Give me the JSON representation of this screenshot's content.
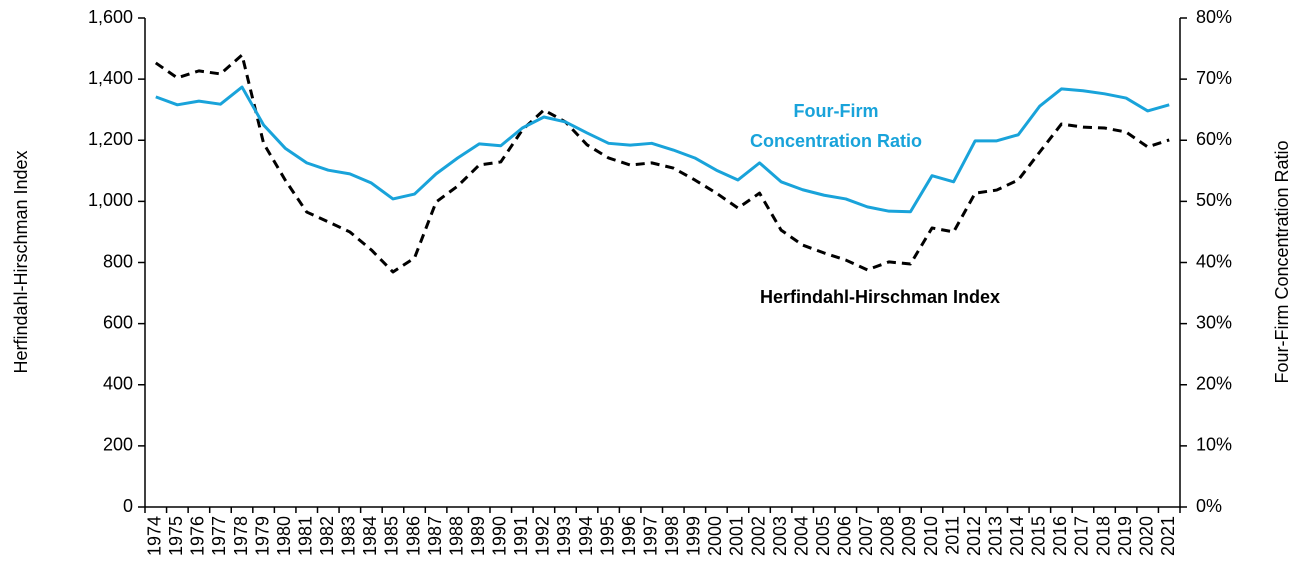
{
  "chart_data": {
    "type": "line",
    "y_label": "Herfindahl-Hirschman Index",
    "y2_label": "Four-Firm Concentration Ratio",
    "categories": [
      "1974",
      "1975",
      "1976",
      "1977",
      "1978",
      "1979",
      "1980",
      "1981",
      "1982",
      "1983",
      "1984",
      "1985",
      "1986",
      "1987",
      "1988",
      "1989",
      "1990",
      "1991",
      "1992",
      "1993",
      "1994",
      "1995",
      "1996",
      "1997",
      "1998",
      "1999",
      "2000",
      "2001",
      "2002",
      "2003",
      "2004",
      "2005",
      "2006",
      "2007",
      "2008",
      "2009",
      "2010",
      "2011",
      "2012",
      "2013",
      "2014",
      "2015",
      "2016",
      "2017",
      "2018",
      "2019",
      "2020",
      "2021"
    ],
    "series": [
      {
        "labels": [
          "Herfindahl-Hirschman Index"
        ],
        "color": "#000000",
        "dashed": true,
        "values": [
          1453,
          1404,
          1427,
          1417,
          1479,
          1190,
          1070,
          965,
          933,
          900,
          841,
          769,
          815,
          998,
          1050,
          1119,
          1129,
          1234,
          1299,
          1260,
          1185,
          1142,
          1119,
          1126,
          1109,
          1070,
          1027,
          978,
          1027,
          906,
          857,
          831,
          808,
          776,
          802,
          795,
          913,
          900,
          1027,
          1037,
          1070,
          1162,
          1253,
          1243,
          1240,
          1227,
          1178,
          1201
        ]
      },
      {
        "labels": [
          "Four-Firm",
          "Concentration Ratio"
        ],
        "color": "#19a3da",
        "axis": "y2",
        "values": [
          67.1,
          65.8,
          66.4,
          65.9,
          68.7,
          62.5,
          58.7,
          56.3,
          55.1,
          54.5,
          53.0,
          50.4,
          51.2,
          54.5,
          57.1,
          59.4,
          59.1,
          62.0,
          63.8,
          63.0,
          61.2,
          59.5,
          59.2,
          59.5,
          58.4,
          57.1,
          55.1,
          53.5,
          56.3,
          53.2,
          51.9,
          51.0,
          50.4,
          49.1,
          48.4,
          48.3,
          54.2,
          53.2,
          59.9,
          59.9,
          60.9,
          65.6,
          68.4,
          68.1,
          67.6,
          66.9,
          64.8,
          65.8
        ]
      }
    ],
    "ylim": [
      0,
      1600
    ],
    "yticks": [
      0,
      200,
      400,
      600,
      800,
      {
        "value": 1000,
        "label": "1,000"
      },
      {
        "value": 1200,
        "label": "1,200"
      },
      {
        "value": 1400,
        "label": "1,400"
      },
      {
        "value": 1600,
        "label": "1,600"
      }
    ],
    "y2lim": [
      0,
      80
    ],
    "y2ticks": [
      {
        "value": 0,
        "label": "0%"
      },
      {
        "value": 10,
        "label": "10%"
      },
      {
        "value": 20,
        "label": "20%"
      },
      {
        "value": 30,
        "label": "30%"
      },
      {
        "value": 40,
        "label": "40%"
      },
      {
        "value": 50,
        "label": "50%"
      },
      {
        "value": 60,
        "label": "60%"
      },
      {
        "value": 70,
        "label": "70%"
      },
      {
        "value": 80,
        "label": "80%"
      }
    ],
    "grid": false
  }
}
